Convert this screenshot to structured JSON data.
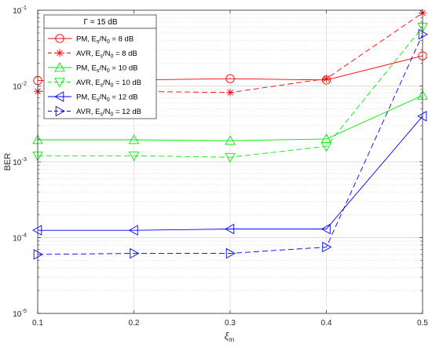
{
  "chart_data": {
    "type": "line",
    "title": "",
    "xlabel": "ξ",
    "xlabel_sub": "m",
    "ylabel": "BER",
    "x": [
      0.1,
      0.2,
      0.3,
      0.4,
      0.5
    ],
    "xlim": [
      0.1,
      0.5
    ],
    "x_ticks": [
      "0.1",
      "0.2",
      "0.3",
      "0.4",
      "0.5"
    ],
    "ylim": [
      1e-05,
      0.1
    ],
    "yscale": "log",
    "y_ticks": [
      {
        "base": "10",
        "exp": "-1",
        "value": 0.1
      },
      {
        "base": "10",
        "exp": "-2",
        "value": 0.01
      },
      {
        "base": "10",
        "exp": "-3",
        "value": 0.001
      },
      {
        "base": "10",
        "exp": "-4",
        "value": 0.0001
      },
      {
        "base": "10",
        "exp": "-5",
        "value": 1e-05
      }
    ],
    "grid": true,
    "legend_position": "top-left",
    "legend_title": "Γ = 15 dB",
    "series": [
      {
        "name": "PM, Es/N0 = 8 dB",
        "label_parts": [
          "PM, E",
          "s",
          "/N",
          "0",
          " = 8 dB"
        ],
        "color": "#ff0000",
        "dash": "solid",
        "marker": "circle",
        "values": [
          0.0118,
          0.012,
          0.0125,
          0.012,
          0.025
        ]
      },
      {
        "name": "AVR, Es/N0 = 8 dB",
        "label_parts": [
          "AVR, E",
          "s",
          "/N",
          "0",
          " = 8 dB"
        ],
        "color": "#ff0000",
        "dash": "dashed",
        "marker": "asterisk",
        "values": [
          0.0085,
          0.0085,
          0.0082,
          0.0125,
          0.092
        ]
      },
      {
        "name": "PM, Es/N0 = 10 dB",
        "label_parts": [
          "PM, E",
          "s",
          "/N",
          "0",
          " = 10 dB"
        ],
        "color": "#00ee00",
        "dash": "solid",
        "marker": "triangle-up",
        "values": [
          0.00195,
          0.00195,
          0.0019,
          0.002,
          0.0075
        ]
      },
      {
        "name": "AVR, Es/N0 = 10 dB",
        "label_parts": [
          "AVR, E",
          "s",
          "/N",
          "0",
          " = 10 dB"
        ],
        "color": "#00ee00",
        "dash": "dashed",
        "marker": "triangle-down",
        "values": [
          0.0012,
          0.0012,
          0.00115,
          0.0016,
          0.06
        ]
      },
      {
        "name": "PM, Es/N0 = 12 dB",
        "label_parts": [
          "PM, E",
          "s",
          "/N",
          "0",
          " = 12 dB"
        ],
        "color": "#0000ff",
        "dash": "solid",
        "marker": "triangle-left",
        "values": [
          0.000125,
          0.000125,
          0.00013,
          0.00013,
          0.004
        ]
      },
      {
        "name": "AVR, Es/N0 = 12 dB",
        "label_parts": [
          "AVR, E",
          "s",
          "/N",
          "0",
          " = 12 dB"
        ],
        "color": "#0000ff",
        "dash": "dashed",
        "marker": "triangle-right",
        "values": [
          6e-05,
          6.2e-05,
          6.2e-05,
          7.5e-05,
          0.048
        ]
      }
    ]
  }
}
